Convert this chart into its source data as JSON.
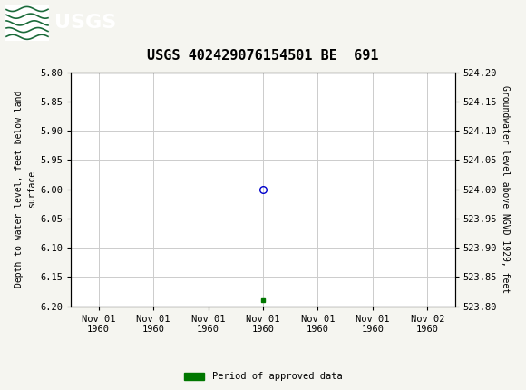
{
  "title": "USGS 402429076154501 BE  691",
  "left_ylabel": "Depth to water level, feet below land\nsurface",
  "right_ylabel": "Groundwater level above NGVD 1929, feet",
  "ylim_left": [
    5.8,
    6.2
  ],
  "ylim_right": [
    524.2,
    523.8
  ],
  "yticks_left": [
    5.8,
    5.85,
    5.9,
    5.95,
    6.0,
    6.05,
    6.1,
    6.15,
    6.2
  ],
  "yticks_right": [
    524.2,
    524.15,
    524.1,
    524.05,
    524.0,
    523.95,
    523.9,
    523.85,
    523.8
  ],
  "xtick_labels": [
    "Nov 01\n1960",
    "Nov 01\n1960",
    "Nov 01\n1960",
    "Nov 01\n1960",
    "Nov 01\n1960",
    "Nov 01\n1960",
    "Nov 02\n1960"
  ],
  "xtick_positions": [
    0,
    1,
    2,
    3,
    4,
    5,
    6
  ],
  "data_point_x": 3,
  "data_point_y": 6.0,
  "data_point2_x": 3,
  "data_point2_y": 6.19,
  "circle_color": "#0000cc",
  "square_color": "#007700",
  "header_color": "#1b6b3a",
  "header_border_color": "#000000",
  "bg_color": "#f5f5f0",
  "plot_bg_color": "#ffffff",
  "grid_color": "#cccccc",
  "legend_label": "Period of approved data",
  "title_fontsize": 11,
  "axis_label_fontsize": 7,
  "tick_fontsize": 7.5
}
